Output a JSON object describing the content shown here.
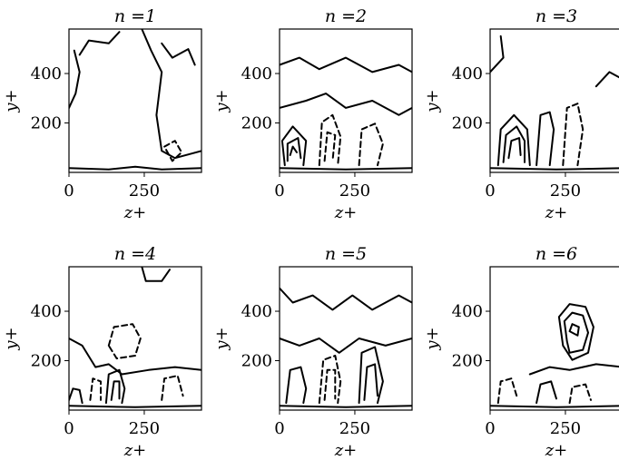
{
  "chart_data": [
    {
      "type": "contour",
      "title": "n =1",
      "xlabel": "z+",
      "ylabel": "y+",
      "xticks": [
        0,
        250
      ],
      "yticks": [
        200,
        400
      ],
      "xlim": [
        0,
        440
      ],
      "ylim": [
        0,
        580
      ],
      "panel": 0
    },
    {
      "type": "contour",
      "title": "n =2",
      "xlabel": "z+",
      "ylabel": "y+",
      "xticks": [
        0,
        250
      ],
      "yticks": [
        200,
        400
      ],
      "xlim": [
        0,
        440
      ],
      "ylim": [
        0,
        580
      ],
      "panel": 1
    },
    {
      "type": "contour",
      "title": "n =3",
      "xlabel": "z+",
      "ylabel": "y+",
      "xticks": [
        0,
        250
      ],
      "yticks": [
        200,
        400
      ],
      "xlim": [
        0,
        440
      ],
      "ylim": [
        0,
        580
      ],
      "panel": 2
    },
    {
      "type": "contour",
      "title": "n =4",
      "xlabel": "z+",
      "ylabel": "y+",
      "xticks": [
        0,
        250
      ],
      "yticks": [
        200,
        400
      ],
      "xlim": [
        0,
        440
      ],
      "ylim": [
        0,
        580
      ],
      "panel": 3
    },
    {
      "type": "contour",
      "title": "n =5",
      "xlabel": "z+",
      "ylabel": "y+",
      "xticks": [
        0,
        250
      ],
      "yticks": [
        200,
        400
      ],
      "xlim": [
        0,
        440
      ],
      "ylim": [
        0,
        580
      ],
      "panel": 4
    },
    {
      "type": "contour",
      "title": "n =6",
      "xlabel": "z+",
      "ylabel": "y+",
      "xticks": [
        0,
        250
      ],
      "yticks": [
        200,
        400
      ],
      "xlim": [
        0,
        440
      ],
      "ylim": [
        0,
        580
      ],
      "panel": 5
    }
  ]
}
